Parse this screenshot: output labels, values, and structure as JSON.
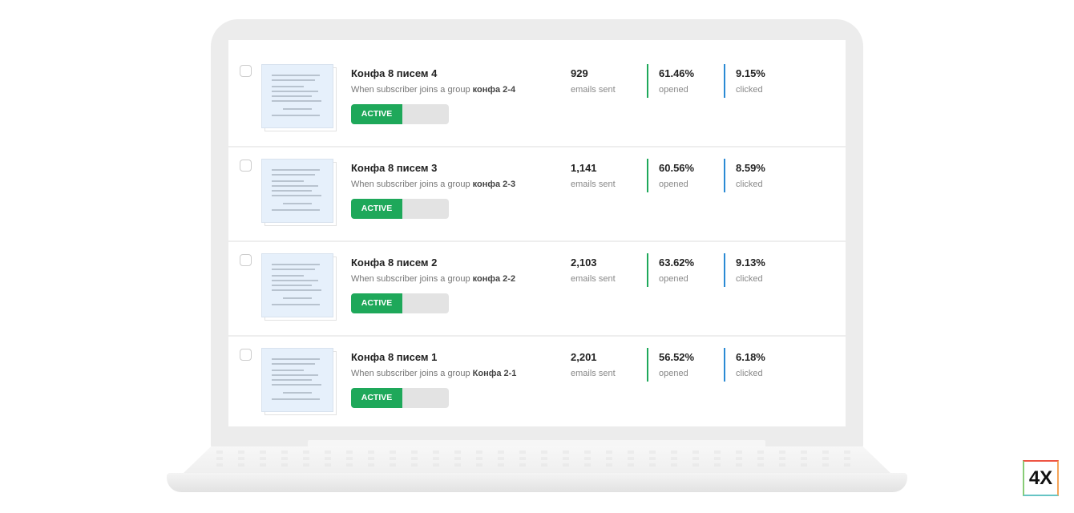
{
  "workflows": [
    {
      "title": "Конфа 8 писем 4",
      "trigger": "When subscriber joins a group ",
      "group": "конфа 2-4",
      "status": "ACTIVE",
      "sent": "929",
      "sent_label": "emails sent",
      "opened": "61.46%",
      "opened_label": "opened",
      "clicked": "9.15%",
      "clicked_label": "clicked"
    },
    {
      "title": "Конфа 8 писем 3",
      "trigger": "When subscriber joins a group ",
      "group": "конфа 2-3",
      "status": "ACTIVE",
      "sent": "1,141",
      "sent_label": "emails sent",
      "opened": "60.56%",
      "opened_label": "opened",
      "clicked": "8.59%",
      "clicked_label": "clicked"
    },
    {
      "title": "Конфа 8 писем 2",
      "trigger": "When subscriber joins a group ",
      "group": "конфа 2-2",
      "status": "ACTIVE",
      "sent": "2,103",
      "sent_label": "emails sent",
      "opened": "63.62%",
      "opened_label": "opened",
      "clicked": "9.13%",
      "clicked_label": "clicked"
    },
    {
      "title": "Конфа 8 писем 1",
      "trigger": "When subscriber joins a group ",
      "group": "Конфа 2-1",
      "status": "ACTIVE",
      "sent": "2,201",
      "sent_label": "emails sent",
      "opened": "56.52%",
      "opened_label": "opened",
      "clicked": "6.18%",
      "clicked_label": "clicked"
    }
  ],
  "colors": {
    "active": "#1ea85a",
    "opened_bar": "#1ea85a",
    "clicked_bar": "#2a8ad4"
  },
  "logo": "4X"
}
